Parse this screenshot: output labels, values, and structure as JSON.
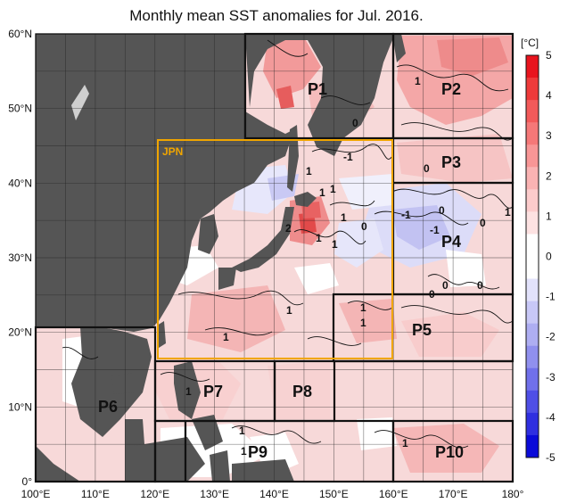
{
  "title": "Monthly mean SST anomalies for Jul. 2016.",
  "map": {
    "lon_range": [
      100,
      180
    ],
    "lat_range": [
      0,
      60
    ],
    "lon_ticks": [
      "100°E",
      "110°E",
      "120°E",
      "130°E",
      "140°E",
      "150°E",
      "160°E",
      "170°E",
      "180°"
    ],
    "lat_ticks": [
      "0°",
      "10°N",
      "20°N",
      "30°N",
      "40°N",
      "50°N",
      "60°N"
    ],
    "land_color": "#555555",
    "ocean_base_color": "#f7d9d9"
  },
  "jpn_box": {
    "label": "JPN",
    "color": "#f0a500"
  },
  "regions": [
    {
      "name": "P1"
    },
    {
      "name": "P2"
    },
    {
      "name": "P3"
    },
    {
      "name": "P4"
    },
    {
      "name": "P5"
    },
    {
      "name": "P6"
    },
    {
      "name": "P7"
    },
    {
      "name": "P8"
    },
    {
      "name": "P9"
    },
    {
      "name": "P10"
    }
  ],
  "contour_labels": [
    "1",
    "0",
    "1",
    "-1",
    "0",
    "1",
    "0",
    "1",
    "-1",
    "-1",
    "0",
    "1",
    "2",
    "1",
    "1",
    "0",
    "0",
    "0",
    "0",
    "1",
    "1",
    "1",
    "1",
    "1",
    "1",
    "1",
    "1",
    "1"
  ],
  "colorbar": {
    "unit": "[°C]",
    "ticks": [
      "5",
      "4",
      "3",
      "2",
      "1",
      "0",
      "-1",
      "-2",
      "-3",
      "-4",
      "-5"
    ],
    "colors": [
      "#e8141e",
      "#ee3a3a",
      "#f25a5a",
      "#f57878",
      "#f89696",
      "#fab3b3",
      "#fccccc",
      "#fde2e2",
      "#ffffff",
      "#ffffff",
      "#e2e2fb",
      "#c8c8f7",
      "#aeaef2",
      "#9090ee",
      "#7070ea",
      "#4f4fe6",
      "#2f2fe0",
      "#0b0bd8"
    ]
  }
}
